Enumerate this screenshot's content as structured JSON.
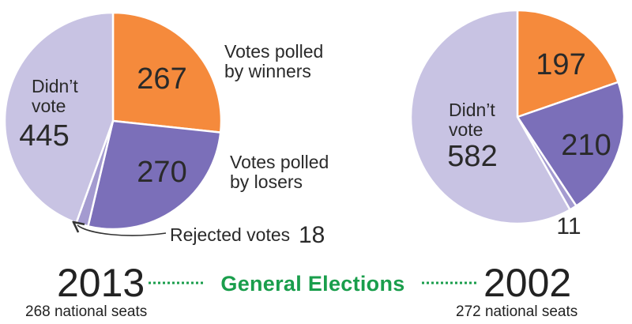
{
  "chart_data": [
    {
      "type": "pie",
      "year": "2013",
      "seats_note": "268 national seats",
      "slices": [
        {
          "label": "Votes polled by winners",
          "label_lines": [
            "Votes polled",
            "by winners"
          ],
          "value": 267,
          "color": "#f58a3c"
        },
        {
          "label": "Votes polled by losers",
          "label_lines": [
            "Votes polled",
            "by losers"
          ],
          "value": 270,
          "color": "#7b6fb9"
        },
        {
          "label": "Rejected votes",
          "label_lines": [
            "Rejected votes"
          ],
          "value": 18,
          "color": "#a49bd0"
        },
        {
          "label": "Didn’t vote",
          "label_lines": [
            "Didn’t",
            "vote"
          ],
          "value": 445,
          "color": "#c8c3e3"
        }
      ]
    },
    {
      "type": "pie",
      "year": "2002",
      "seats_note": "272 national seats",
      "slices": [
        {
          "label": "",
          "value": 197,
          "color": "#f58a3c"
        },
        {
          "label": "",
          "value": 210,
          "color": "#7b6fb9"
        },
        {
          "label": "",
          "value": 11,
          "color": "#a49bd0"
        },
        {
          "label": "Didn’t vote",
          "label_lines": [
            "Didn’t",
            "vote"
          ],
          "value": 582,
          "color": "#c8c3e3"
        }
      ]
    }
  ],
  "title": "General Elections"
}
